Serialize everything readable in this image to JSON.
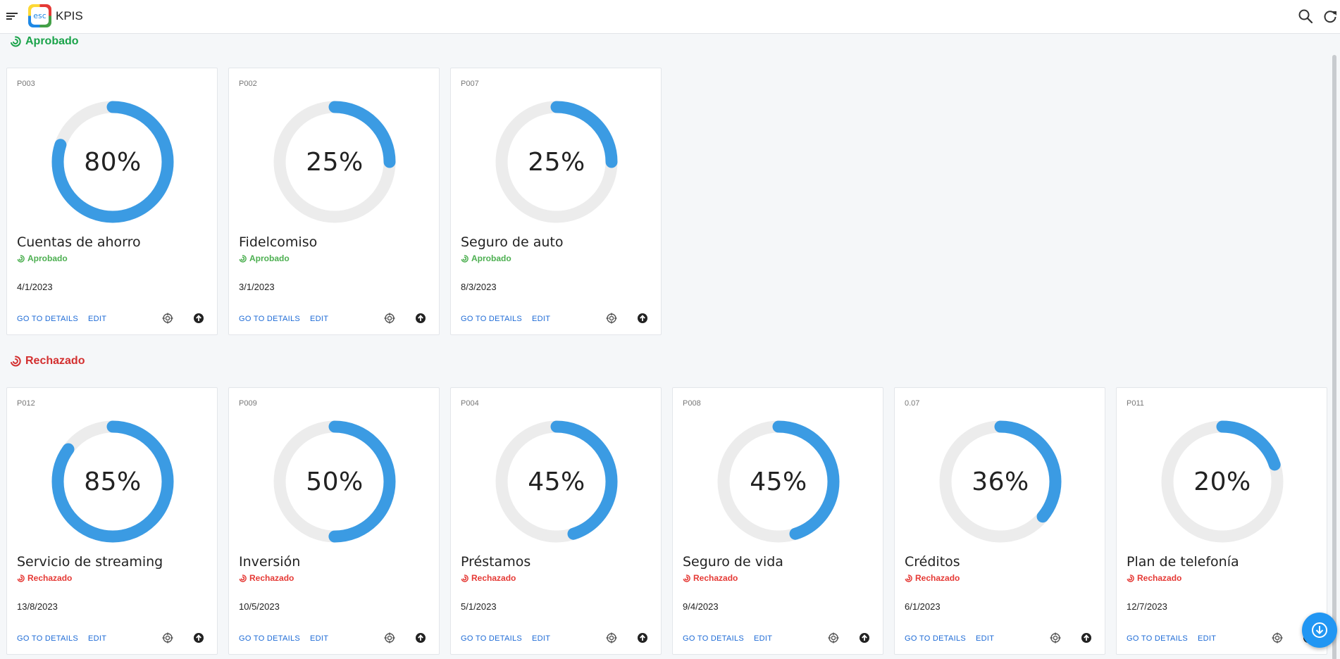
{
  "app": {
    "logo_text": "esc",
    "title": "KPIS"
  },
  "colors": {
    "gauge_fill": "#3b9be3",
    "gauge_track": "#ececec",
    "approved": "#1aa34a",
    "rejected": "#d32f2f",
    "link": "#1e6bd6"
  },
  "groups": [
    {
      "title": "Aprobado",
      "cards": [
        {
          "code": "P003",
          "value": 80,
          "label": "80%",
          "name": "Cuentas de ahorro",
          "status": "Aprobado",
          "date": "4/1/2023"
        },
        {
          "code": "P002",
          "value": 25,
          "label": "25%",
          "name": "Fidelcomiso",
          "status": "Aprobado",
          "date": "3/1/2023"
        },
        {
          "code": "P007",
          "value": 25,
          "label": "25%",
          "name": "Seguro de auto",
          "status": "Aprobado",
          "date": "8/3/2023"
        }
      ]
    },
    {
      "title": "Rechazado",
      "cards": [
        {
          "code": "P012",
          "value": 85,
          "label": "85%",
          "name": "Servicio de streaming",
          "status": "Rechazado",
          "date": "13/8/2023"
        },
        {
          "code": "P009",
          "value": 50,
          "label": "50%",
          "name": "Inversión",
          "status": "Rechazado",
          "date": "10/5/2023"
        },
        {
          "code": "P004",
          "value": 45,
          "label": "45%",
          "name": "Préstamos",
          "status": "Rechazado",
          "date": "5/1/2023"
        },
        {
          "code": "P008",
          "value": 45,
          "label": "45%",
          "name": "Seguro de vida",
          "status": "Rechazado",
          "date": "9/4/2023"
        },
        {
          "code": "0.07",
          "value": 36,
          "label": "36%",
          "name": "Créditos",
          "status": "Rechazado",
          "date": "6/1/2023"
        },
        {
          "code": "P011",
          "value": 20,
          "label": "20%",
          "name": "Plan de telefonía",
          "status": "Rechazado",
          "date": "12/7/2023"
        }
      ]
    }
  ],
  "actions": {
    "details": "GO TO DETAILS",
    "edit": "EDIT"
  }
}
